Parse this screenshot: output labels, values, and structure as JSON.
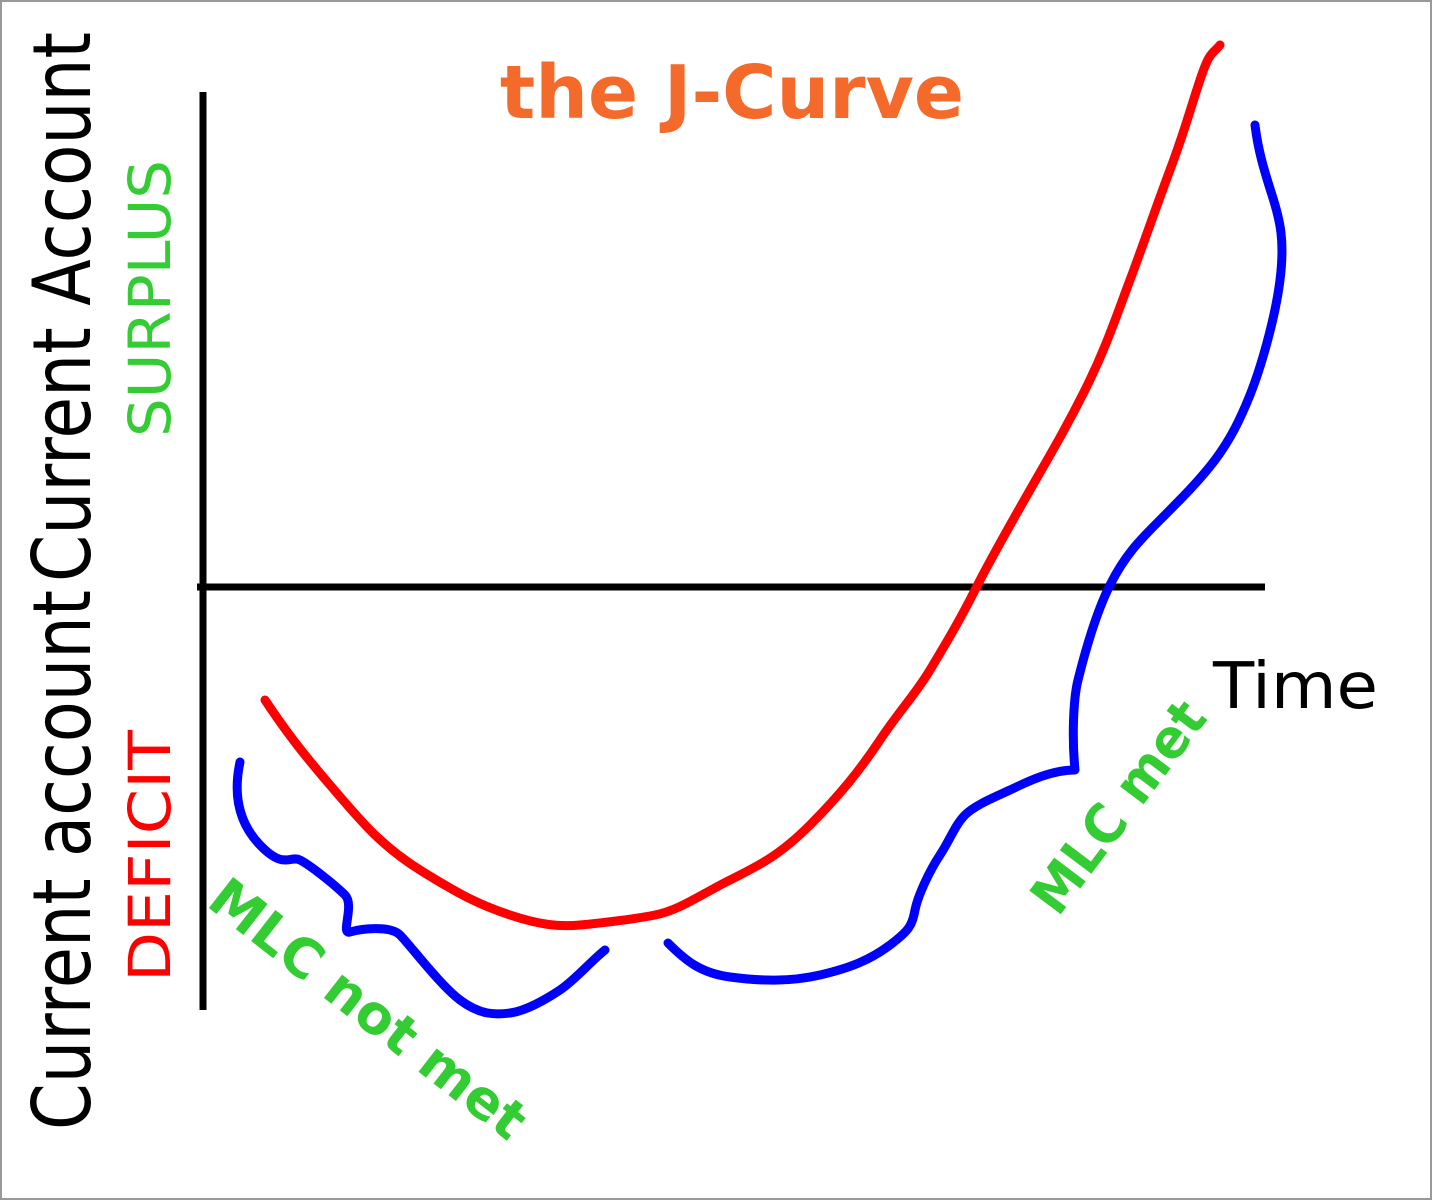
{
  "title": "the J-Curve",
  "axis_labels": {
    "y_lower": "Current account",
    "y_upper": "Current Account",
    "surplus": "SURPLUS",
    "deficit": "DEFICIT",
    "x": "Time"
  },
  "annotations": [
    "MLC not met",
    "MLC met"
  ]
}
